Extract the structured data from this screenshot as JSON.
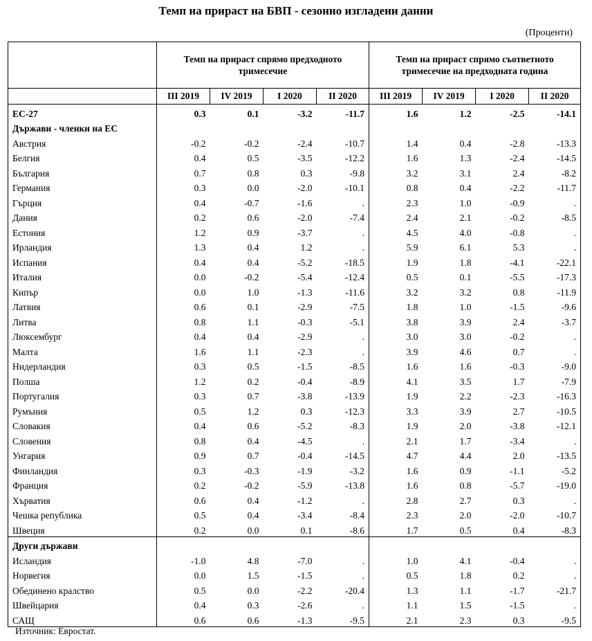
{
  "title": "Темп на прираст на БВП - сезонно изгладени данни",
  "units": "(Проценти)",
  "group_headers": {
    "q_on_q": "Темп на прираст спрямо предходното тримесечие",
    "y_on_y": "Темп на прираст спрямо съответното тримесечие на предходната година"
  },
  "quarters": [
    "III 2019",
    "IV 2019",
    "I 2020",
    "II 2020",
    "III 2019",
    "IV 2019",
    "I 2020",
    "II 2020"
  ],
  "eu27": {
    "name": "ЕС-27",
    "values": [
      "0.3",
      "0.1",
      "-3.2",
      "-11.7",
      "1.6",
      "1.2",
      "-2.5",
      "-14.1"
    ]
  },
  "members_heading": "Държави - членки на ЕС",
  "members": [
    {
      "name": "Австрия",
      "values": [
        "-0.2",
        "-0.2",
        "-2.4",
        "-10.7",
        "1.4",
        "0.4",
        "-2.8",
        "-13.3"
      ]
    },
    {
      "name": "Белгия",
      "values": [
        "0.4",
        "0.5",
        "-3.5",
        "-12.2",
        "1.6",
        "1.3",
        "-2.4",
        "-14.5"
      ]
    },
    {
      "name": "България",
      "values": [
        "0.7",
        "0.8",
        "0.3",
        "-9.8",
        "3.2",
        "3.1",
        "2.4",
        "-8.2"
      ]
    },
    {
      "name": "Германия",
      "values": [
        "0.3",
        "0.0",
        "-2.0",
        "-10.1",
        "0.8",
        "0.4",
        "-2.2",
        "-11.7"
      ]
    },
    {
      "name": "Гърция",
      "values": [
        "0.4",
        "-0.7",
        "-1.6",
        ".",
        "2.3",
        "1.0",
        "-0.9",
        "."
      ]
    },
    {
      "name": "Дания",
      "values": [
        "0.2",
        "0.6",
        "-2.0",
        "-7.4",
        "2.4",
        "2.1",
        "-0.2",
        "-8.5"
      ]
    },
    {
      "name": "Естония",
      "values": [
        "1.2",
        "0.9",
        "-3.7",
        ".",
        "4.5",
        "4.0",
        "-0.8",
        "."
      ]
    },
    {
      "name": "Ирландия",
      "values": [
        "1.3",
        "0.4",
        "1.2",
        ".",
        "5.9",
        "6.1",
        "5.3",
        "."
      ]
    },
    {
      "name": "Испания",
      "values": [
        "0.4",
        "0.4",
        "-5.2",
        "-18.5",
        "1.9",
        "1.8",
        "-4.1",
        "-22.1"
      ]
    },
    {
      "name": "Италия",
      "values": [
        "0.0",
        "-0.2",
        "-5.4",
        "-12.4",
        "0.5",
        "0.1",
        "-5.5",
        "-17.3"
      ]
    },
    {
      "name": "Кипър",
      "values": [
        "0.0",
        "1.0",
        "-1.3",
        "-11.6",
        "3.2",
        "3.2",
        "0.8",
        "-11.9"
      ]
    },
    {
      "name": "Латвия",
      "values": [
        "0.6",
        "0.1",
        "-2.9",
        "-7.5",
        "1.8",
        "1.0",
        "-1.5",
        "-9.6"
      ]
    },
    {
      "name": "Литва",
      "values": [
        "0.8",
        "1.1",
        "-0.3",
        "-5.1",
        "3.8",
        "3.9",
        "2.4",
        "-3.7"
      ]
    },
    {
      "name": "Люксембург",
      "values": [
        "0.4",
        "0.4",
        "-2.9",
        ".",
        "3.0",
        "3.0",
        "-0.2",
        "."
      ]
    },
    {
      "name": "Малта",
      "values": [
        "1.6",
        "1.1",
        "-2.3",
        ".",
        "3.9",
        "4.6",
        "0.7",
        "."
      ]
    },
    {
      "name": "Нидерландия",
      "values": [
        "0.3",
        "0.5",
        "-1.5",
        "-8.5",
        "1.6",
        "1.6",
        "-0.3",
        "-9.0"
      ]
    },
    {
      "name": "Полша",
      "values": [
        "1.2",
        "0.2",
        "-0.4",
        "-8.9",
        "4.1",
        "3.5",
        "1.7",
        "-7.9"
      ]
    },
    {
      "name": "Португалия",
      "values": [
        "0.3",
        "0.7",
        "-3.8",
        "-13.9",
        "1.9",
        "2.2",
        "-2.3",
        "-16.3"
      ]
    },
    {
      "name": "Румъния",
      "values": [
        "0.5",
        "1.2",
        "0.3",
        "-12.3",
        "3.3",
        "3.9",
        "2.7",
        "-10.5"
      ]
    },
    {
      "name": "Словакия",
      "values": [
        "0.4",
        "0.6",
        "-5.2",
        "-8.3",
        "1.9",
        "2.0",
        "-3.8",
        "-12.1"
      ]
    },
    {
      "name": "Словения",
      "values": [
        "0.8",
        "0.4",
        "-4.5",
        ".",
        "2.1",
        "1.7",
        "-3.4",
        "."
      ]
    },
    {
      "name": "Унгария",
      "values": [
        "0.9",
        "0.7",
        "-0.4",
        "-14.5",
        "4.7",
        "4.4",
        "2.0",
        "-13.5"
      ]
    },
    {
      "name": "Финландия",
      "values": [
        "0.3",
        "-0.3",
        "-1.9",
        "-3.2",
        "1.6",
        "0.9",
        "-1.1",
        "-5.2"
      ]
    },
    {
      "name": "Франция",
      "values": [
        "0.2",
        "-0.2",
        "-5.9",
        "-13.8",
        "1.6",
        "0.8",
        "-5.7",
        "-19.0"
      ]
    },
    {
      "name": "Хърватия",
      "values": [
        "0.6",
        "0.4",
        "-1.2",
        ".",
        "2.8",
        "2.7",
        "0.3",
        "."
      ]
    },
    {
      "name": "Чешка република",
      "values": [
        "0.5",
        "0.4",
        "-3.4",
        "-8.4",
        "2.3",
        "2.0",
        "-2.0",
        "-10.7"
      ]
    },
    {
      "name": "Швеция",
      "values": [
        "0.2",
        "0.0",
        "0.1",
        "-8.6",
        "1.7",
        "0.5",
        "0.4",
        "-8.3"
      ]
    }
  ],
  "others_heading": "Други държави",
  "others": [
    {
      "name": "Исландия",
      "values": [
        "-1.0",
        "4.8",
        "-7.0",
        ".",
        "1.0",
        "4.1",
        "-0.4",
        "."
      ]
    },
    {
      "name": "Норвегия",
      "values": [
        "0.0",
        "1.5",
        "-1.5",
        ".",
        "0.5",
        "1.8",
        "0.2",
        "."
      ]
    },
    {
      "name": "Обединено кралство",
      "values": [
        "0.5",
        "0.0",
        "-2.2",
        "-20.4",
        "1.3",
        "1.1",
        "-1.7",
        "-21.7"
      ]
    },
    {
      "name": "Швейцария",
      "values": [
        "0.4",
        "0.3",
        "-2.6",
        ".",
        "1.1",
        "1.5",
        "-1.5",
        "."
      ]
    },
    {
      "name": "САЩ",
      "values": [
        "0.6",
        "0.6",
        "-1.3",
        "-9.5",
        "2.1",
        "2.3",
        "0.3",
        "-9.5"
      ]
    }
  ],
  "source": "Източник: Евростат."
}
